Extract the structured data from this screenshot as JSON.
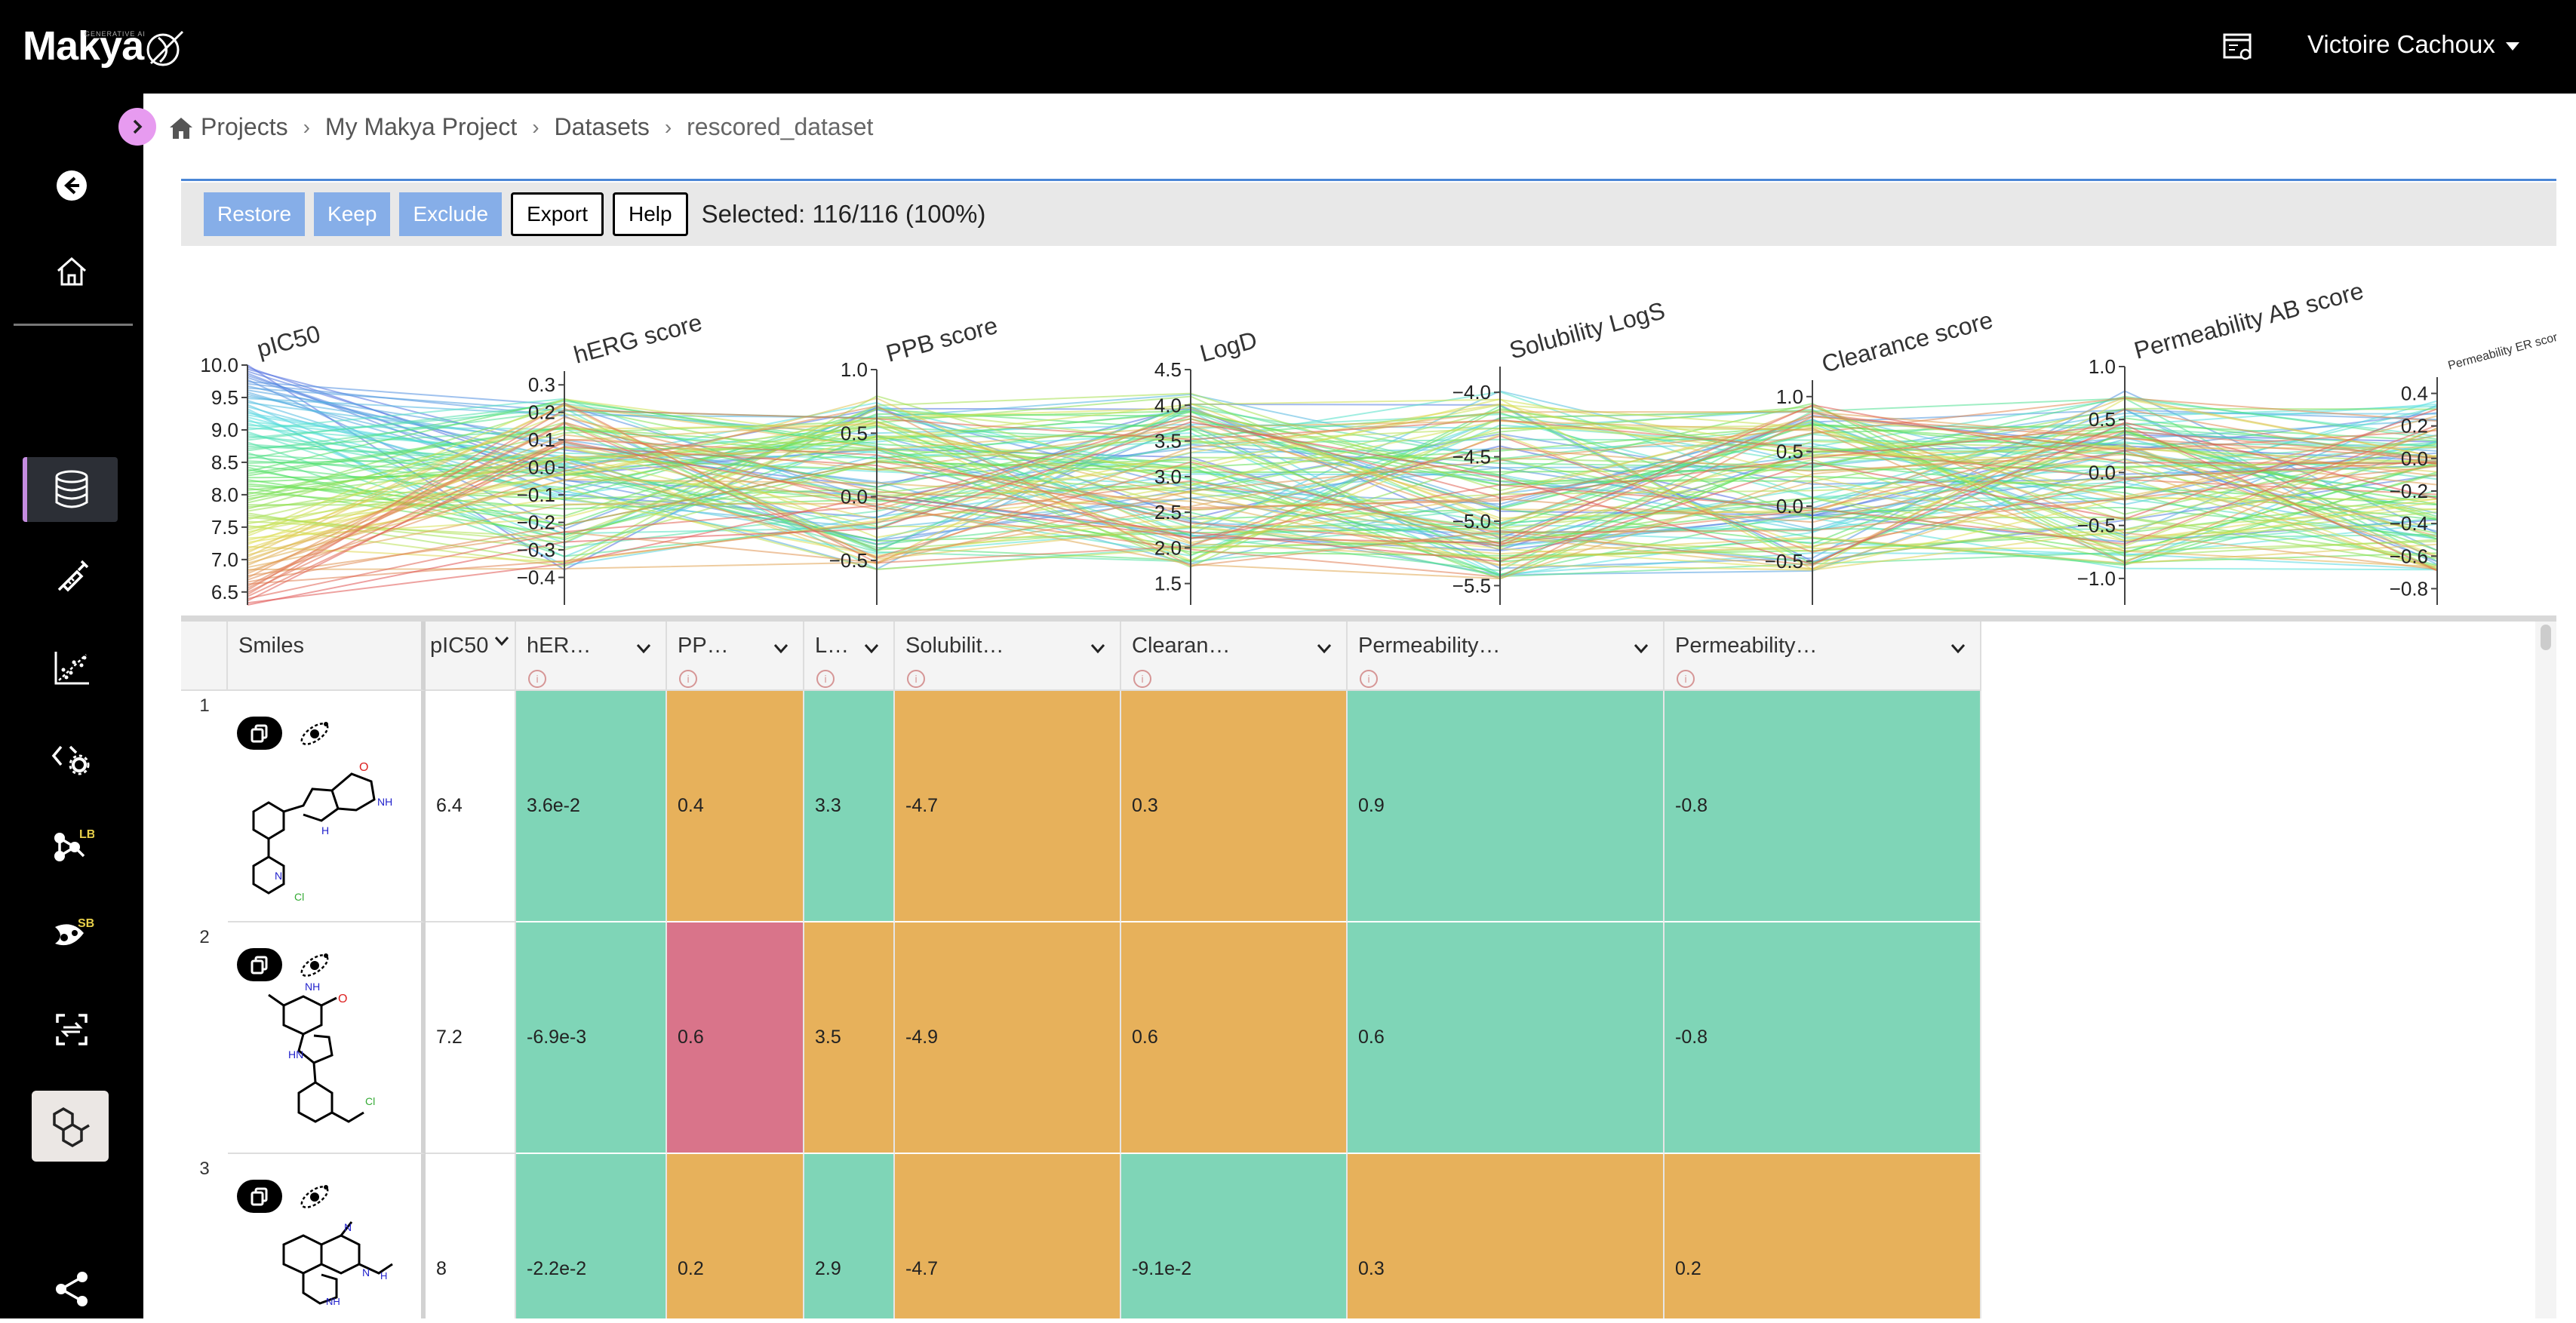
{
  "app": {
    "logo_text": "Makya",
    "logo_tagline": "GENERATIVE AI",
    "user_name": "Victoire Cachoux"
  },
  "sidebar": {
    "items": [
      {
        "name": "back",
        "icon": "arrow-left-circle-icon"
      },
      {
        "name": "home",
        "icon": "home-icon"
      },
      {
        "name": "datasets",
        "icon": "database-icon",
        "active": true
      },
      {
        "name": "syringe",
        "icon": "syringe-icon"
      },
      {
        "name": "scatter",
        "icon": "scatter-chart-icon"
      },
      {
        "name": "code-settings",
        "icon": "code-gear-icon"
      },
      {
        "name": "ligand-based",
        "icon": "molecule-lb-icon",
        "badge": "LB"
      },
      {
        "name": "structure-based",
        "icon": "molecule-sb-icon",
        "badge": "SB"
      },
      {
        "name": "transform",
        "icon": "transform-icon"
      },
      {
        "name": "molecules",
        "icon": "hexagon-molecule-icon",
        "selected": true
      },
      {
        "name": "share",
        "icon": "share-icon"
      }
    ],
    "accent_color": "#c58ce0"
  },
  "breadcrumb": {
    "items": [
      "Projects",
      "My Makya Project",
      "Datasets",
      "rescored_dataset"
    ]
  },
  "toolbar": {
    "restore_label": "Restore",
    "keep_label": "Keep",
    "exclude_label": "Exclude",
    "export_label": "Export",
    "help_label": "Help",
    "selected_text": "Selected: 116/116 (100%)"
  },
  "chart_data": {
    "type": "parallel-coordinates",
    "axes": [
      {
        "label": "pIC50",
        "ticks": [
          "10.0",
          "9.5",
          "9.0",
          "8.5",
          "8.0",
          "7.5",
          "7.0",
          "6.5"
        ],
        "range": [
          6.3,
          10.0
        ]
      },
      {
        "label": "hERG score",
        "ticks": [
          "0.3",
          "0.2",
          "0.1",
          "0.0",
          "−0.1",
          "−0.2",
          "−0.3",
          "−0.4"
        ],
        "range": [
          -0.5,
          0.35
        ]
      },
      {
        "label": "PPB score",
        "ticks": [
          "1.0",
          "0.5",
          "0.0",
          "−0.5"
        ],
        "range": [
          -0.85,
          1.0
        ]
      },
      {
        "label": "LogD",
        "ticks": [
          "4.5",
          "4.0",
          "3.5",
          "3.0",
          "2.5",
          "2.0",
          "1.5"
        ],
        "range": [
          1.2,
          4.5
        ]
      },
      {
        "label": "Solubility LogS",
        "ticks": [
          "−4.0",
          "−4.5",
          "−5.0",
          "−5.5"
        ],
        "range": [
          -5.65,
          -3.8
        ]
      },
      {
        "label": "Clearance score",
        "ticks": [
          "1.0",
          "0.5",
          "0.0",
          "−0.5"
        ],
        "range": [
          -0.9,
          1.15
        ]
      },
      {
        "label": "Permeability AB score",
        "ticks": [
          "1.0",
          "0.5",
          "0.0",
          "−0.5",
          "−1.0"
        ],
        "range": [
          -1.25,
          1.0
        ]
      },
      {
        "label": "Permeability ER score",
        "ticks": [
          "0.4",
          "0.2",
          "0.0",
          "−0.2",
          "−0.4",
          "−0.6",
          "−0.8"
        ],
        "range": [
          -0.9,
          0.5
        ]
      }
    ],
    "series_count": 116
  },
  "table": {
    "columns": [
      {
        "label": "Smiles",
        "key": "smiles"
      },
      {
        "label": "pIC50",
        "key": "pic50"
      },
      {
        "label": "hER…",
        "key": "herg"
      },
      {
        "label": "PP…",
        "key": "ppb"
      },
      {
        "label": "L…",
        "key": "logd"
      },
      {
        "label": "Solubilit…",
        "key": "sol"
      },
      {
        "label": "Clearan…",
        "key": "clear"
      },
      {
        "label": "Permeability…",
        "key": "permab"
      },
      {
        "label": "Permeability…",
        "key": "permer"
      }
    ],
    "rows": [
      {
        "num": "1",
        "pic50": "6.4",
        "herg": "3.6e-2",
        "ppb": "0.4",
        "logd": "3.3",
        "sol": "-4.7",
        "clear": "0.3",
        "permab": "0.9",
        "permer": "-0.8",
        "colors": {
          "herg": "green",
          "ppb": "orange",
          "logd": "green",
          "sol": "orange",
          "clear": "orange",
          "permab": "green",
          "permer": "green"
        }
      },
      {
        "num": "2",
        "pic50": "7.2",
        "herg": "-6.9e-3",
        "ppb": "0.6",
        "logd": "3.5",
        "sol": "-4.9",
        "clear": "0.6",
        "permab": "0.6",
        "permer": "-0.8",
        "colors": {
          "herg": "green",
          "ppb": "red",
          "logd": "orange",
          "sol": "orange",
          "clear": "orange",
          "permab": "green",
          "permer": "green"
        }
      },
      {
        "num": "3",
        "pic50": "8",
        "herg": "-2.2e-2",
        "ppb": "0.2",
        "logd": "2.9",
        "sol": "-4.7",
        "clear": "-9.1e-2",
        "permab": "0.3",
        "permer": "0.2",
        "colors": {
          "herg": "green",
          "ppb": "orange",
          "logd": "green",
          "sol": "orange",
          "clear": "green",
          "permab": "orange",
          "permer": "orange"
        }
      }
    ]
  }
}
